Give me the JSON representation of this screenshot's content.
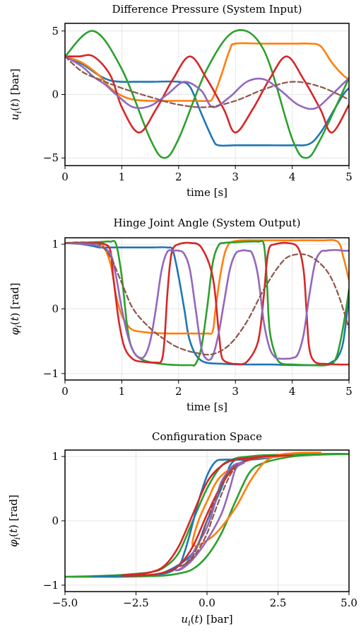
{
  "colors": {
    "u1": "#1f77b4",
    "u2": "#ff7f0e",
    "u3": "#2ca02c",
    "u4": "#d62728",
    "u5": "#9467bd",
    "u6": "#8c564b"
  },
  "chart_data": [
    {
      "type": "line",
      "title": "Difference Pressure (System Input)",
      "xlabel": "time [s]",
      "ylabel": "u_i(t) [bar]",
      "xlim": [
        0,
        5
      ],
      "ylim": [
        -5.6,
        5.6
      ],
      "xticks": [
        0,
        1,
        2,
        3,
        4,
        5
      ],
      "xtick_labels": [
        "0",
        "1",
        "2",
        "3",
        "4",
        "5"
      ],
      "yticks": [
        -5,
        0,
        5
      ],
      "ytick_labels": [
        "−5",
        "0",
        "5"
      ],
      "grid": true,
      "series": [
        {
          "color_key": "u1",
          "x": [
            0,
            0.3,
            0.6,
            0.8,
            1.0,
            1.2,
            1.5,
            2.0,
            2.2,
            2.4,
            2.6,
            2.7,
            3.0,
            3.5,
            4.0,
            4.3,
            4.5,
            4.7,
            4.9,
            5.0
          ],
          "y": [
            3.0,
            2.4,
            1.5,
            1.1,
            1.0,
            1.0,
            1.0,
            1.0,
            0.6,
            -1.5,
            -3.5,
            -4.0,
            -4.0,
            -4.0,
            -4.0,
            -3.9,
            -3.0,
            -1.5,
            0.0,
            0.5
          ]
        },
        {
          "color_key": "u2",
          "x": [
            0,
            0.3,
            0.6,
            0.8,
            1.0,
            1.2,
            1.5,
            2.0,
            2.3,
            2.5,
            2.6,
            2.75,
            2.9,
            3.0,
            3.5,
            4.0,
            4.3,
            4.5,
            4.7,
            4.9,
            5.0
          ],
          "y": [
            3.0,
            2.5,
            1.5,
            0.5,
            -0.1,
            -0.4,
            -0.5,
            -0.5,
            -0.5,
            -0.5,
            -0.3,
            1.5,
            3.5,
            4.0,
            4.0,
            4.0,
            4.0,
            3.8,
            2.5,
            1.5,
            1.2
          ]
        },
        {
          "color_key": "u3",
          "x": [
            0,
            0.5,
            1.0,
            1.5,
            1.75,
            2.0,
            2.5,
            3.0,
            3.5,
            4.0,
            4.25,
            4.5,
            5.0
          ],
          "y": [
            3.0,
            5.0,
            2.0,
            -3.5,
            -5.0,
            -3.5,
            2.0,
            5.0,
            3.5,
            -3.5,
            -5.0,
            -3.5,
            1.3
          ]
        },
        {
          "color_key": "u4",
          "x": [
            0,
            0.25,
            0.5,
            0.8,
            1.0,
            1.3,
            1.6,
            1.9,
            2.2,
            2.5,
            2.8,
            3.0,
            3.3,
            3.6,
            3.9,
            4.2,
            4.5,
            4.7,
            5.0
          ],
          "y": [
            3.0,
            3.0,
            3.0,
            1.5,
            -1.0,
            -3.0,
            -1.2,
            1.2,
            3.0,
            1.2,
            -1.2,
            -3.0,
            -1.2,
            1.2,
            3.0,
            1.2,
            -1.2,
            -3.0,
            -0.8
          ]
        },
        {
          "color_key": "u5",
          "x": [
            0,
            0.3,
            0.5,
            0.7,
            0.9,
            1.2,
            1.5,
            1.8,
            2.1,
            2.4,
            2.6,
            2.9,
            3.2,
            3.5,
            3.8,
            4.1,
            4.4,
            4.7,
            5.0
          ],
          "y": [
            3.0,
            2.2,
            1.4,
            0.8,
            0.0,
            -1.0,
            -0.9,
            0.0,
            1.0,
            0.3,
            -1.0,
            -0.2,
            1.0,
            1.2,
            0.3,
            -0.8,
            -1.1,
            0.0,
            1.3
          ]
        },
        {
          "color_key": "u6",
          "dashed": true,
          "x": [
            0,
            0.3,
            0.6,
            1.0,
            1.5,
            2.0,
            2.5,
            3.0,
            3.5,
            4.0,
            4.5,
            5.0
          ],
          "y": [
            3.0,
            1.8,
            1.2,
            0.5,
            -0.2,
            -0.8,
            -1.0,
            -0.5,
            0.4,
            1.0,
            0.6,
            -0.4
          ]
        }
      ]
    },
    {
      "type": "line",
      "title": "Hinge Joint Angle (System Output)",
      "xlabel": "time [s]",
      "ylabel": "φ_i(t) [rad]",
      "xlim": [
        0,
        5
      ],
      "ylim": [
        -1.1,
        1.1
      ],
      "xticks": [
        0,
        1,
        2,
        3,
        4,
        5
      ],
      "xtick_labels": [
        "0",
        "1",
        "2",
        "3",
        "4",
        "5"
      ],
      "yticks": [
        -1,
        0,
        1
      ],
      "ytick_labels": [
        "−1",
        "0",
        "1"
      ],
      "grid": true,
      "series": [
        {
          "color_key": "u1",
          "x": [
            0,
            0.3,
            0.5,
            0.6,
            0.8,
            1.0,
            1.5,
            1.8,
            1.9,
            2.0,
            2.1,
            2.2,
            2.4,
            2.8,
            3.2,
            3.6,
            4.0,
            4.4,
            4.6,
            4.7,
            4.8,
            4.9,
            5.0
          ],
          "y": [
            1.02,
            1.0,
            0.97,
            0.95,
            0.95,
            0.95,
            0.95,
            0.95,
            0.9,
            0.5,
            0.0,
            -0.5,
            -0.8,
            -0.85,
            -0.86,
            -0.86,
            -0.87,
            -0.87,
            -0.86,
            -0.82,
            -0.75,
            -0.5,
            0.2
          ]
        },
        {
          "color_key": "u2",
          "x": [
            0,
            0.5,
            0.65,
            0.8,
            0.9,
            1.0,
            1.1,
            1.2,
            1.4,
            1.8,
            2.2,
            2.5,
            2.6,
            2.65,
            2.75,
            2.85,
            3.0,
            3.5,
            4.0,
            4.5,
            4.8,
            4.9,
            5.0
          ],
          "y": [
            1.02,
            1.02,
            1.0,
            0.7,
            0.2,
            -0.1,
            -0.25,
            -0.33,
            -0.36,
            -0.38,
            -0.38,
            -0.38,
            -0.35,
            0.0,
            0.6,
            0.95,
            1.05,
            1.06,
            1.06,
            1.06,
            1.04,
            0.8,
            0.45
          ]
        },
        {
          "color_key": "u3",
          "x": [
            0,
            0.5,
            0.7,
            0.8,
            0.9,
            1.0,
            1.1,
            1.2,
            1.4,
            1.8,
            2.2,
            2.3,
            2.4,
            2.5,
            2.6,
            2.7,
            2.8,
            3.0,
            3.2,
            3.4,
            3.5,
            3.55,
            3.6,
            3.7,
            3.8,
            4.0,
            4.3,
            4.6,
            4.75,
            4.85,
            4.95,
            5.0
          ],
          "y": [
            1.02,
            1.03,
            1.04,
            1.04,
            1.0,
            0.5,
            -0.3,
            -0.65,
            -0.8,
            -0.86,
            -0.87,
            -0.85,
            -0.6,
            0.0,
            0.7,
            0.98,
            1.02,
            1.03,
            1.04,
            1.04,
            1.0,
            0.5,
            -0.3,
            -0.7,
            -0.84,
            -0.86,
            -0.87,
            -0.87,
            -0.8,
            -0.5,
            0.0,
            0.3
          ]
        },
        {
          "color_key": "u4",
          "x": [
            0,
            0.5,
            0.7,
            0.8,
            0.85,
            0.95,
            1.05,
            1.2,
            1.4,
            1.6,
            1.7,
            1.75,
            1.8,
            1.85,
            1.9,
            2.0,
            2.2,
            2.4,
            2.6,
            2.7,
            2.75,
            2.8,
            2.9,
            3.0,
            3.2,
            3.4,
            3.5,
            3.55,
            3.6,
            3.7,
            3.9,
            4.1,
            4.2,
            4.25,
            4.3,
            4.4,
            4.6,
            4.8,
            5.0
          ],
          "y": [
            1.02,
            1.02,
            1.0,
            0.9,
            0.5,
            -0.2,
            -0.6,
            -0.78,
            -0.82,
            -0.83,
            -0.8,
            -0.5,
            0.2,
            0.7,
            0.93,
            1.0,
            1.02,
            0.95,
            0.5,
            -0.3,
            -0.7,
            -0.8,
            -0.84,
            -0.85,
            -0.82,
            -0.5,
            0.2,
            0.7,
            0.95,
            1.0,
            1.02,
            0.95,
            0.6,
            0.0,
            -0.6,
            -0.82,
            -0.85,
            -0.86,
            -0.86
          ]
        },
        {
          "color_key": "u5",
          "x": [
            0,
            0.4,
            0.6,
            0.8,
            0.9,
            1.0,
            1.1,
            1.2,
            1.3,
            1.4,
            1.5,
            1.6,
            1.7,
            1.8,
            1.9,
            2.0,
            2.1,
            2.2,
            2.3,
            2.4,
            2.5,
            2.6,
            2.7,
            2.8,
            2.9,
            3.0,
            3.1,
            3.2,
            3.3,
            3.4,
            3.5,
            3.6,
            3.7,
            3.8,
            3.9,
            4.0,
            4.1,
            4.2,
            4.3,
            4.4,
            4.5,
            4.6,
            4.7,
            4.8,
            4.9,
            5.0
          ],
          "y": [
            1.02,
            1.0,
            0.97,
            0.85,
            0.5,
            0.0,
            -0.4,
            -0.65,
            -0.75,
            -0.73,
            -0.5,
            0.0,
            0.6,
            0.88,
            0.9,
            0.9,
            0.85,
            0.6,
            0.0,
            -0.6,
            -0.78,
            -0.73,
            -0.4,
            0.1,
            0.6,
            0.85,
            0.9,
            0.9,
            0.85,
            0.5,
            -0.2,
            -0.6,
            -0.75,
            -0.77,
            -0.77,
            -0.76,
            -0.7,
            -0.4,
            0.2,
            0.7,
            0.88,
            0.9,
            0.91,
            0.91,
            0.9,
            0.9
          ]
        },
        {
          "color_key": "u6",
          "dashed": true,
          "x": [
            0,
            0.3,
            0.6,
            0.8,
            1.0,
            1.2,
            1.5,
            1.8,
            2.0,
            2.3,
            2.6,
            2.9,
            3.2,
            3.5,
            3.8,
            4.0,
            4.3,
            4.6,
            4.8,
            5.0
          ],
          "y": [
            1.02,
            1.03,
            1.0,
            0.8,
            0.4,
            0.0,
            -0.3,
            -0.5,
            -0.6,
            -0.68,
            -0.7,
            -0.55,
            -0.2,
            0.3,
            0.7,
            0.83,
            0.82,
            0.6,
            0.25,
            -0.3
          ]
        }
      ]
    },
    {
      "type": "line",
      "title": "Configuration Space",
      "xlabel": "u_i(t) [bar]",
      "ylabel": "φ_i(t) [rad]",
      "xlim": [
        -5,
        5
      ],
      "ylim": [
        -1.1,
        1.1
      ],
      "xticks": [
        -5,
        -2.5,
        0,
        2.5,
        5
      ],
      "xtick_labels": [
        "−5.0",
        "−2.5",
        "0.0",
        "2.5",
        "5.0"
      ],
      "yticks": [
        -1,
        0,
        1
      ],
      "ytick_labels": [
        "−1",
        "0",
        "1"
      ],
      "grid": true,
      "series": [
        {
          "color_key": "u3",
          "x": [
            -5.0,
            -4.0,
            -3.0,
            -2.0,
            -1.5,
            -1.0,
            -0.5,
            0.0,
            0.5,
            1.0,
            1.5,
            2.0,
            3.0,
            4.0,
            5.0,
            4.0,
            3.0,
            2.0,
            1.5,
            1.0,
            0.5,
            0.0,
            -0.5,
            -1.0,
            -1.5,
            -2.0,
            -3.0,
            -4.0,
            -5.0
          ],
          "y": [
            -0.87,
            -0.86,
            -0.84,
            -0.8,
            -0.72,
            -0.5,
            0.0,
            0.5,
            0.85,
            0.97,
            1.0,
            1.02,
            1.03,
            1.04,
            1.04,
            1.03,
            1.0,
            0.9,
            0.75,
            0.3,
            -0.2,
            -0.55,
            -0.75,
            -0.82,
            -0.85,
            -0.86,
            -0.87,
            -0.87,
            -0.87
          ]
        },
        {
          "color_key": "u1",
          "x": [
            3.0,
            2.5,
            2.0,
            1.5,
            1.0,
            0.6,
            0.3,
            0.0,
            -0.3,
            -0.6,
            -0.8,
            -1.0,
            -1.5,
            -2.5,
            -3.0,
            -4.0,
            -3.5,
            -2.5,
            -1.5,
            -0.5,
            0.0,
            0.5,
            0.8,
            1.0
          ],
          "y": [
            1.02,
            1.0,
            0.97,
            0.95,
            0.95,
            0.95,
            0.92,
            0.7,
            0.3,
            -0.2,
            -0.5,
            -0.7,
            -0.82,
            -0.85,
            -0.86,
            -0.86,
            -0.86,
            -0.85,
            -0.8,
            -0.5,
            0.0,
            0.5,
            0.85,
            0.95
          ]
        },
        {
          "color_key": "u2",
          "x": [
            3.0,
            2.5,
            1.5,
            0.5,
            0.0,
            -0.3,
            -0.5,
            -0.5,
            -0.5,
            -0.3,
            0.3,
            1.0,
            1.5,
            2.0,
            2.5,
            3.0,
            3.5,
            4.0
          ],
          "y": [
            1.02,
            1.0,
            0.95,
            0.7,
            0.3,
            0.0,
            -0.3,
            -0.38,
            -0.38,
            -0.38,
            -0.2,
            0.2,
            0.6,
            0.9,
            1.02,
            1.05,
            1.06,
            1.06
          ]
        },
        {
          "color_key": "u4",
          "x": [
            3.0,
            2.0,
            1.0,
            0.5,
            0.0,
            -0.5,
            -1.0,
            -1.5,
            -2.0,
            -2.5,
            -3.0,
            -2.5,
            -2.0,
            -1.5,
            -1.0,
            -0.5,
            0.0,
            0.5,
            1.0,
            1.5,
            2.0,
            2.5,
            3.0
          ],
          "y": [
            1.02,
            1.0,
            0.95,
            0.85,
            0.6,
            0.1,
            -0.4,
            -0.7,
            -0.8,
            -0.83,
            -0.85,
            -0.85,
            -0.84,
            -0.8,
            -0.7,
            -0.4,
            0.1,
            0.55,
            0.85,
            0.95,
            1.0,
            1.01,
            1.02
          ]
        },
        {
          "color_key": "u5",
          "x": [
            -1.1,
            -1.0,
            -0.8,
            -0.5,
            0.0,
            0.3,
            0.5,
            0.9,
            1.2,
            1.3,
            1.2,
            1.0,
            0.8,
            0.5,
            0.0,
            -0.5,
            -0.9,
            -1.1
          ],
          "y": [
            -0.77,
            -0.76,
            -0.7,
            -0.5,
            -0.1,
            0.3,
            0.6,
            0.85,
            0.9,
            0.9,
            0.88,
            0.8,
            0.5,
            0.1,
            -0.3,
            -0.6,
            -0.75,
            -0.77
          ]
        },
        {
          "color_key": "u6",
          "dashed": true,
          "x": [
            -1.0,
            -0.8,
            -0.5,
            -0.2,
            0.0,
            0.3,
            0.6,
            0.9,
            1.0,
            0.8,
            0.5,
            0.2,
            0.0,
            -0.3,
            -0.6,
            -0.9,
            -1.0
          ],
          "y": [
            -0.7,
            -0.68,
            -0.55,
            -0.25,
            0.0,
            0.35,
            0.65,
            0.82,
            0.83,
            0.7,
            0.4,
            0.05,
            -0.2,
            -0.45,
            -0.62,
            -0.7,
            -0.7
          ]
        }
      ]
    }
  ]
}
